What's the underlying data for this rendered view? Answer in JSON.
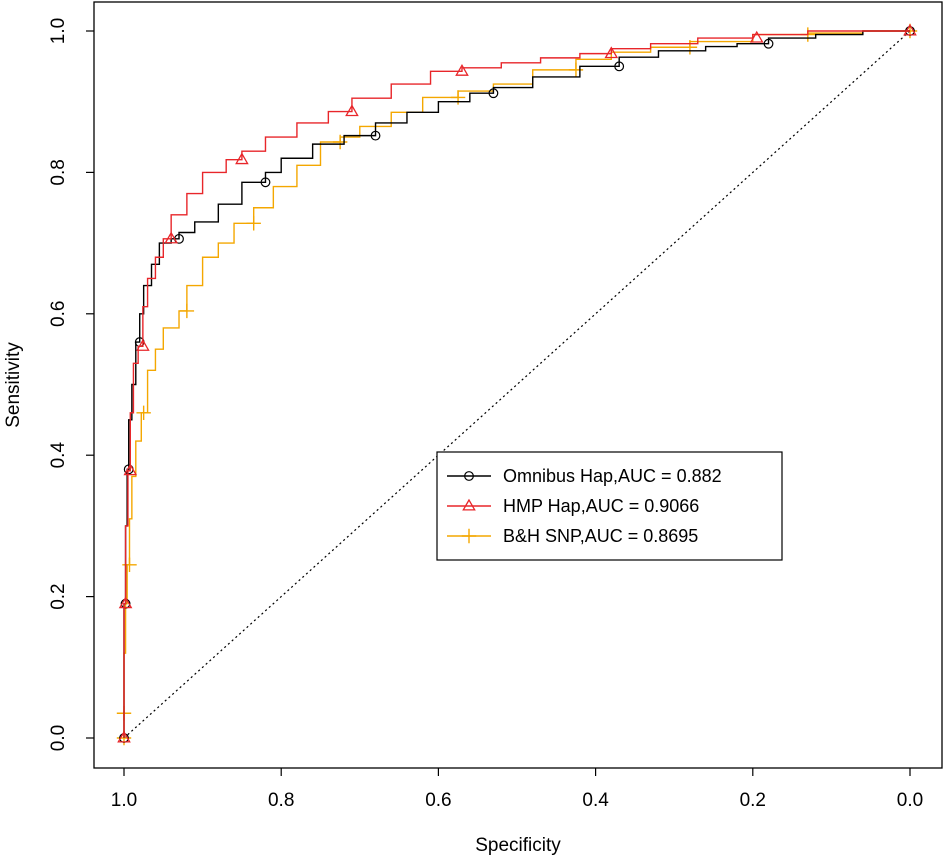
{
  "chart_data": {
    "type": "line",
    "title": "",
    "xlabel": "Specificity",
    "ylabel": "Sensitivity",
    "xlim": [
      1.0,
      0.0
    ],
    "ylim": [
      0.0,
      1.0
    ],
    "x_reversed": true,
    "grid": false,
    "legend_position": "center-right",
    "x_ticks": [
      "1.0",
      "0.8",
      "0.6",
      "0.4",
      "0.2",
      "0.0"
    ],
    "y_ticks": [
      "0.0",
      "0.2",
      "0.4",
      "0.6",
      "0.8",
      "1.0"
    ],
    "reference_line": {
      "from": [
        1.0,
        0.0
      ],
      "to": [
        0.0,
        1.0
      ],
      "style": "dotted",
      "color": "#000000"
    },
    "series": [
      {
        "name": "Omnibus Hap,AUC = 0.882",
        "color": "#000000",
        "marker": "circle",
        "points": [
          [
            1.0,
            0.0
          ],
          [
            1.0,
            0.12
          ],
          [
            0.998,
            0.19
          ],
          [
            0.996,
            0.3
          ],
          [
            0.994,
            0.38
          ],
          [
            0.99,
            0.45
          ],
          [
            0.985,
            0.5
          ],
          [
            0.98,
            0.56
          ],
          [
            0.975,
            0.6
          ],
          [
            0.965,
            0.64
          ],
          [
            0.955,
            0.67
          ],
          [
            0.94,
            0.7
          ],
          [
            0.93,
            0.706
          ],
          [
            0.91,
            0.715
          ],
          [
            0.88,
            0.73
          ],
          [
            0.85,
            0.755
          ],
          [
            0.82,
            0.786
          ],
          [
            0.8,
            0.8
          ],
          [
            0.76,
            0.82
          ],
          [
            0.72,
            0.84
          ],
          [
            0.68,
            0.852
          ],
          [
            0.64,
            0.87
          ],
          [
            0.6,
            0.885
          ],
          [
            0.56,
            0.9
          ],
          [
            0.53,
            0.912
          ],
          [
            0.48,
            0.92
          ],
          [
            0.42,
            0.935
          ],
          [
            0.37,
            0.95
          ],
          [
            0.32,
            0.963
          ],
          [
            0.26,
            0.972
          ],
          [
            0.22,
            0.978
          ],
          [
            0.18,
            0.982
          ],
          [
            0.12,
            0.99
          ],
          [
            0.06,
            0.995
          ],
          [
            0.0,
            1.0
          ]
        ],
        "markers": [
          [
            1.0,
            0.0
          ],
          [
            0.998,
            0.19
          ],
          [
            0.994,
            0.38
          ],
          [
            0.98,
            0.56
          ],
          [
            0.93,
            0.706
          ],
          [
            0.82,
            0.786
          ],
          [
            0.68,
            0.852
          ],
          [
            0.53,
            0.912
          ],
          [
            0.37,
            0.95
          ],
          [
            0.18,
            0.982
          ],
          [
            0.0,
            1.0
          ]
        ]
      },
      {
        "name": "HMP Hap,AUC = 0.9066",
        "color": "#e8262a",
        "marker": "triangle",
        "points": [
          [
            1.0,
            0.0
          ],
          [
            1.0,
            0.11
          ],
          [
            0.998,
            0.19
          ],
          [
            0.995,
            0.3
          ],
          [
            0.992,
            0.378
          ],
          [
            0.988,
            0.46
          ],
          [
            0.982,
            0.53
          ],
          [
            0.976,
            0.554
          ],
          [
            0.97,
            0.61
          ],
          [
            0.96,
            0.65
          ],
          [
            0.95,
            0.68
          ],
          [
            0.94,
            0.706
          ],
          [
            0.92,
            0.74
          ],
          [
            0.9,
            0.77
          ],
          [
            0.87,
            0.8
          ],
          [
            0.85,
            0.818
          ],
          [
            0.82,
            0.83
          ],
          [
            0.78,
            0.85
          ],
          [
            0.74,
            0.87
          ],
          [
            0.71,
            0.886
          ],
          [
            0.66,
            0.905
          ],
          [
            0.61,
            0.925
          ],
          [
            0.57,
            0.943
          ],
          [
            0.52,
            0.948
          ],
          [
            0.47,
            0.955
          ],
          [
            0.42,
            0.962
          ],
          [
            0.38,
            0.968
          ],
          [
            0.33,
            0.975
          ],
          [
            0.27,
            0.982
          ],
          [
            0.2,
            0.99
          ],
          [
            0.13,
            0.995
          ],
          [
            0.0,
            1.0
          ]
        ],
        "markers": [
          [
            1.0,
            0.0
          ],
          [
            0.998,
            0.19
          ],
          [
            0.992,
            0.378
          ],
          [
            0.976,
            0.554
          ],
          [
            0.94,
            0.706
          ],
          [
            0.85,
            0.818
          ],
          [
            0.71,
            0.886
          ],
          [
            0.57,
            0.943
          ],
          [
            0.38,
            0.968
          ],
          [
            0.195,
            0.99
          ],
          [
            0.0,
            1.0
          ]
        ]
      },
      {
        "name": "B&H SNP,AUC = 0.8695",
        "color": "#f4a700",
        "marker": "plus",
        "points": [
          [
            1.0,
            0.0
          ],
          [
            1.0,
            0.035
          ],
          [
            0.998,
            0.12
          ],
          [
            0.996,
            0.19
          ],
          [
            0.993,
            0.245
          ],
          [
            0.99,
            0.31
          ],
          [
            0.985,
            0.37
          ],
          [
            0.978,
            0.42
          ],
          [
            0.97,
            0.46
          ],
          [
            0.96,
            0.52
          ],
          [
            0.95,
            0.55
          ],
          [
            0.93,
            0.58
          ],
          [
            0.92,
            0.604
          ],
          [
            0.9,
            0.64
          ],
          [
            0.88,
            0.68
          ],
          [
            0.86,
            0.7
          ],
          [
            0.835,
            0.728
          ],
          [
            0.81,
            0.75
          ],
          [
            0.78,
            0.78
          ],
          [
            0.75,
            0.81
          ],
          [
            0.725,
            0.843
          ],
          [
            0.7,
            0.85
          ],
          [
            0.66,
            0.865
          ],
          [
            0.62,
            0.885
          ],
          [
            0.575,
            0.906
          ],
          [
            0.53,
            0.915
          ],
          [
            0.48,
            0.925
          ],
          [
            0.425,
            0.945
          ],
          [
            0.38,
            0.96
          ],
          [
            0.33,
            0.97
          ],
          [
            0.28,
            0.977
          ],
          [
            0.2,
            0.985
          ],
          [
            0.13,
            0.995
          ],
          [
            0.06,
            0.997
          ],
          [
            0.0,
            1.0
          ]
        ],
        "markers": [
          [
            1.0,
            0.0
          ],
          [
            1.0,
            0.035
          ],
          [
            0.993,
            0.245
          ],
          [
            0.975,
            0.46
          ],
          [
            0.92,
            0.604
          ],
          [
            0.835,
            0.728
          ],
          [
            0.725,
            0.843
          ],
          [
            0.575,
            0.906
          ],
          [
            0.425,
            0.945
          ],
          [
            0.28,
            0.977
          ],
          [
            0.13,
            0.995
          ],
          [
            0.0,
            1.0
          ]
        ]
      }
    ]
  }
}
